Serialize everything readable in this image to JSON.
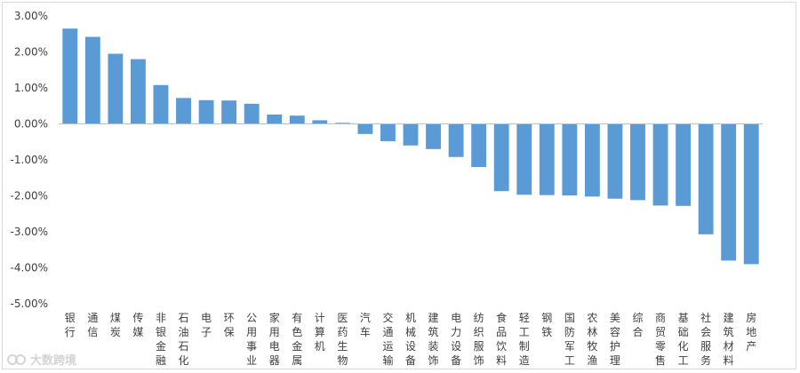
{
  "watermark": {
    "text": "大数跨境"
  },
  "colors": {
    "bar": "#5b9bd5",
    "axis": "#bfbfbf",
    "text": "#404040"
  },
  "chart_data": {
    "type": "bar",
    "title": "",
    "xlabel": "",
    "ylabel": "",
    "ylim": [
      -5,
      3
    ],
    "yticks": [
      "3.00%",
      "2.00%",
      "1.00%",
      "0.00%",
      "-1.00%",
      "-2.00%",
      "-3.00%",
      "-4.00%",
      "-5.00%"
    ],
    "ytick_values": [
      3,
      2,
      1,
      0,
      -1,
      -2,
      -3,
      -4,
      -5
    ],
    "grid": false,
    "legend": "none",
    "categories": [
      "银行",
      "通信",
      "煤炭",
      "传媒",
      "非银金融",
      "石油石化",
      "电子",
      "环保",
      "公用事业",
      "家用电器",
      "有色金属",
      "计算机",
      "医药生物",
      "汽车",
      "交通运输",
      "机械设备",
      "建筑装饰",
      "电力设备",
      "纺织服饰",
      "食品饮料",
      "轻工制造",
      "钢铁",
      "国防军工",
      "农林牧渔",
      "美容护理",
      "综合",
      "商贸零售",
      "基础化工",
      "社会服务",
      "建筑材料",
      "房地产"
    ],
    "values": [
      2.65,
      2.42,
      1.95,
      1.8,
      1.08,
      0.72,
      0.66,
      0.65,
      0.56,
      0.26,
      0.23,
      0.1,
      0.03,
      -0.28,
      -0.48,
      -0.6,
      -0.7,
      -0.92,
      -1.2,
      -1.87,
      -1.97,
      -1.98,
      -1.99,
      -2.02,
      -2.08,
      -2.12,
      -2.27,
      -2.28,
      -3.07,
      -3.8,
      -3.9
    ]
  }
}
